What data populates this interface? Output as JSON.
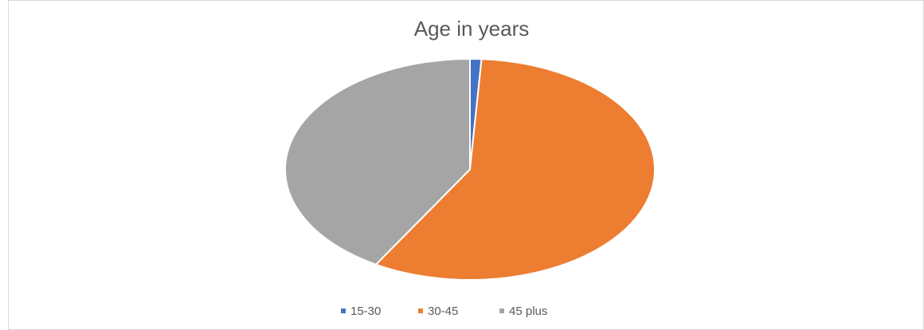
{
  "chart_data": {
    "type": "pie",
    "title": "Age in years",
    "categories": [
      "15-30",
      "30-45",
      "45 plus"
    ],
    "values": [
      1,
      57.5,
      41.5
    ],
    "colors": [
      "#4472c4",
      "#ed7d31",
      "#a5a5a5"
    ],
    "legend": "bottom"
  }
}
